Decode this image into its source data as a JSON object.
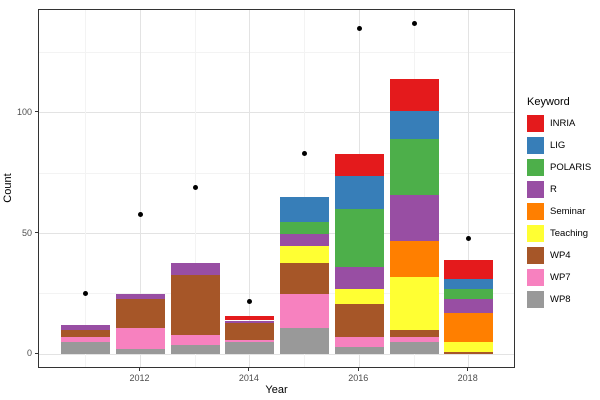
{
  "chart_data": {
    "type": "bar",
    "stacked": true,
    "title": "",
    "xlabel": "Year",
    "ylabel": "Count",
    "categories": [
      2011,
      2012,
      2013,
      2014,
      2015,
      2016,
      2017,
      2018
    ],
    "x_breaks": [
      2012,
      2014,
      2016,
      2018
    ],
    "x_tick_labels": [
      "2012",
      "2014",
      "2016",
      "2018"
    ],
    "y_breaks": [
      0,
      50,
      100
    ],
    "y_tick_labels": [
      "0",
      "50",
      "100"
    ],
    "y_minor_breaks": [
      25,
      75,
      125
    ],
    "ylim": [
      -6,
      143
    ],
    "grid": true,
    "panel_background": "#ffffff",
    "grid_major_color": "#e3e3e3",
    "grid_minor_color": "#f3f3f3",
    "legend": {
      "title": "Keyword",
      "position": "right"
    },
    "stack_order_top_to_bottom": [
      "INRIA",
      "LIG",
      "POLARIS",
      "R",
      "Seminar",
      "Teaching",
      "WP4",
      "WP7",
      "WP8"
    ],
    "series": [
      {
        "name": "INRIA",
        "color": "#E41A1C",
        "values": [
          0,
          0,
          0,
          2,
          0,
          9,
          13,
          8
        ]
      },
      {
        "name": "LIG",
        "color": "#377EB8",
        "values": [
          0,
          0,
          0,
          0,
          10,
          14,
          12,
          4
        ]
      },
      {
        "name": "POLARIS",
        "color": "#4DAF4A",
        "values": [
          0,
          0,
          0,
          0,
          5,
          24,
          23,
          4
        ]
      },
      {
        "name": "R",
        "color": "#984EA3",
        "values": [
          2,
          2,
          5,
          1,
          5,
          9,
          19,
          6
        ]
      },
      {
        "name": "Seminar",
        "color": "#FF7F00",
        "values": [
          0,
          0,
          0,
          0,
          0,
          0,
          15,
          12
        ]
      },
      {
        "name": "Teaching",
        "color": "#FFFF33",
        "values": [
          0,
          0,
          0,
          0,
          7,
          6,
          22,
          4
        ]
      },
      {
        "name": "WP4",
        "color": "#A65628",
        "values": [
          3,
          12,
          25,
          7,
          13,
          14,
          3,
          1
        ]
      },
      {
        "name": "WP7",
        "color": "#F781BF",
        "values": [
          2,
          9,
          4,
          1,
          14,
          4,
          2,
          0
        ]
      },
      {
        "name": "WP8",
        "color": "#999999",
        "values": [
          5,
          2,
          4,
          5,
          11,
          3,
          5,
          0
        ]
      }
    ],
    "bar_totals": [
      12,
      25,
      38,
      16,
      65,
      83,
      114,
      39
    ],
    "points_series": {
      "name": "points",
      "marker": "circle",
      "color": "#000000",
      "values": [
        25,
        58,
        69,
        22,
        83,
        135,
        137,
        48
      ]
    }
  }
}
